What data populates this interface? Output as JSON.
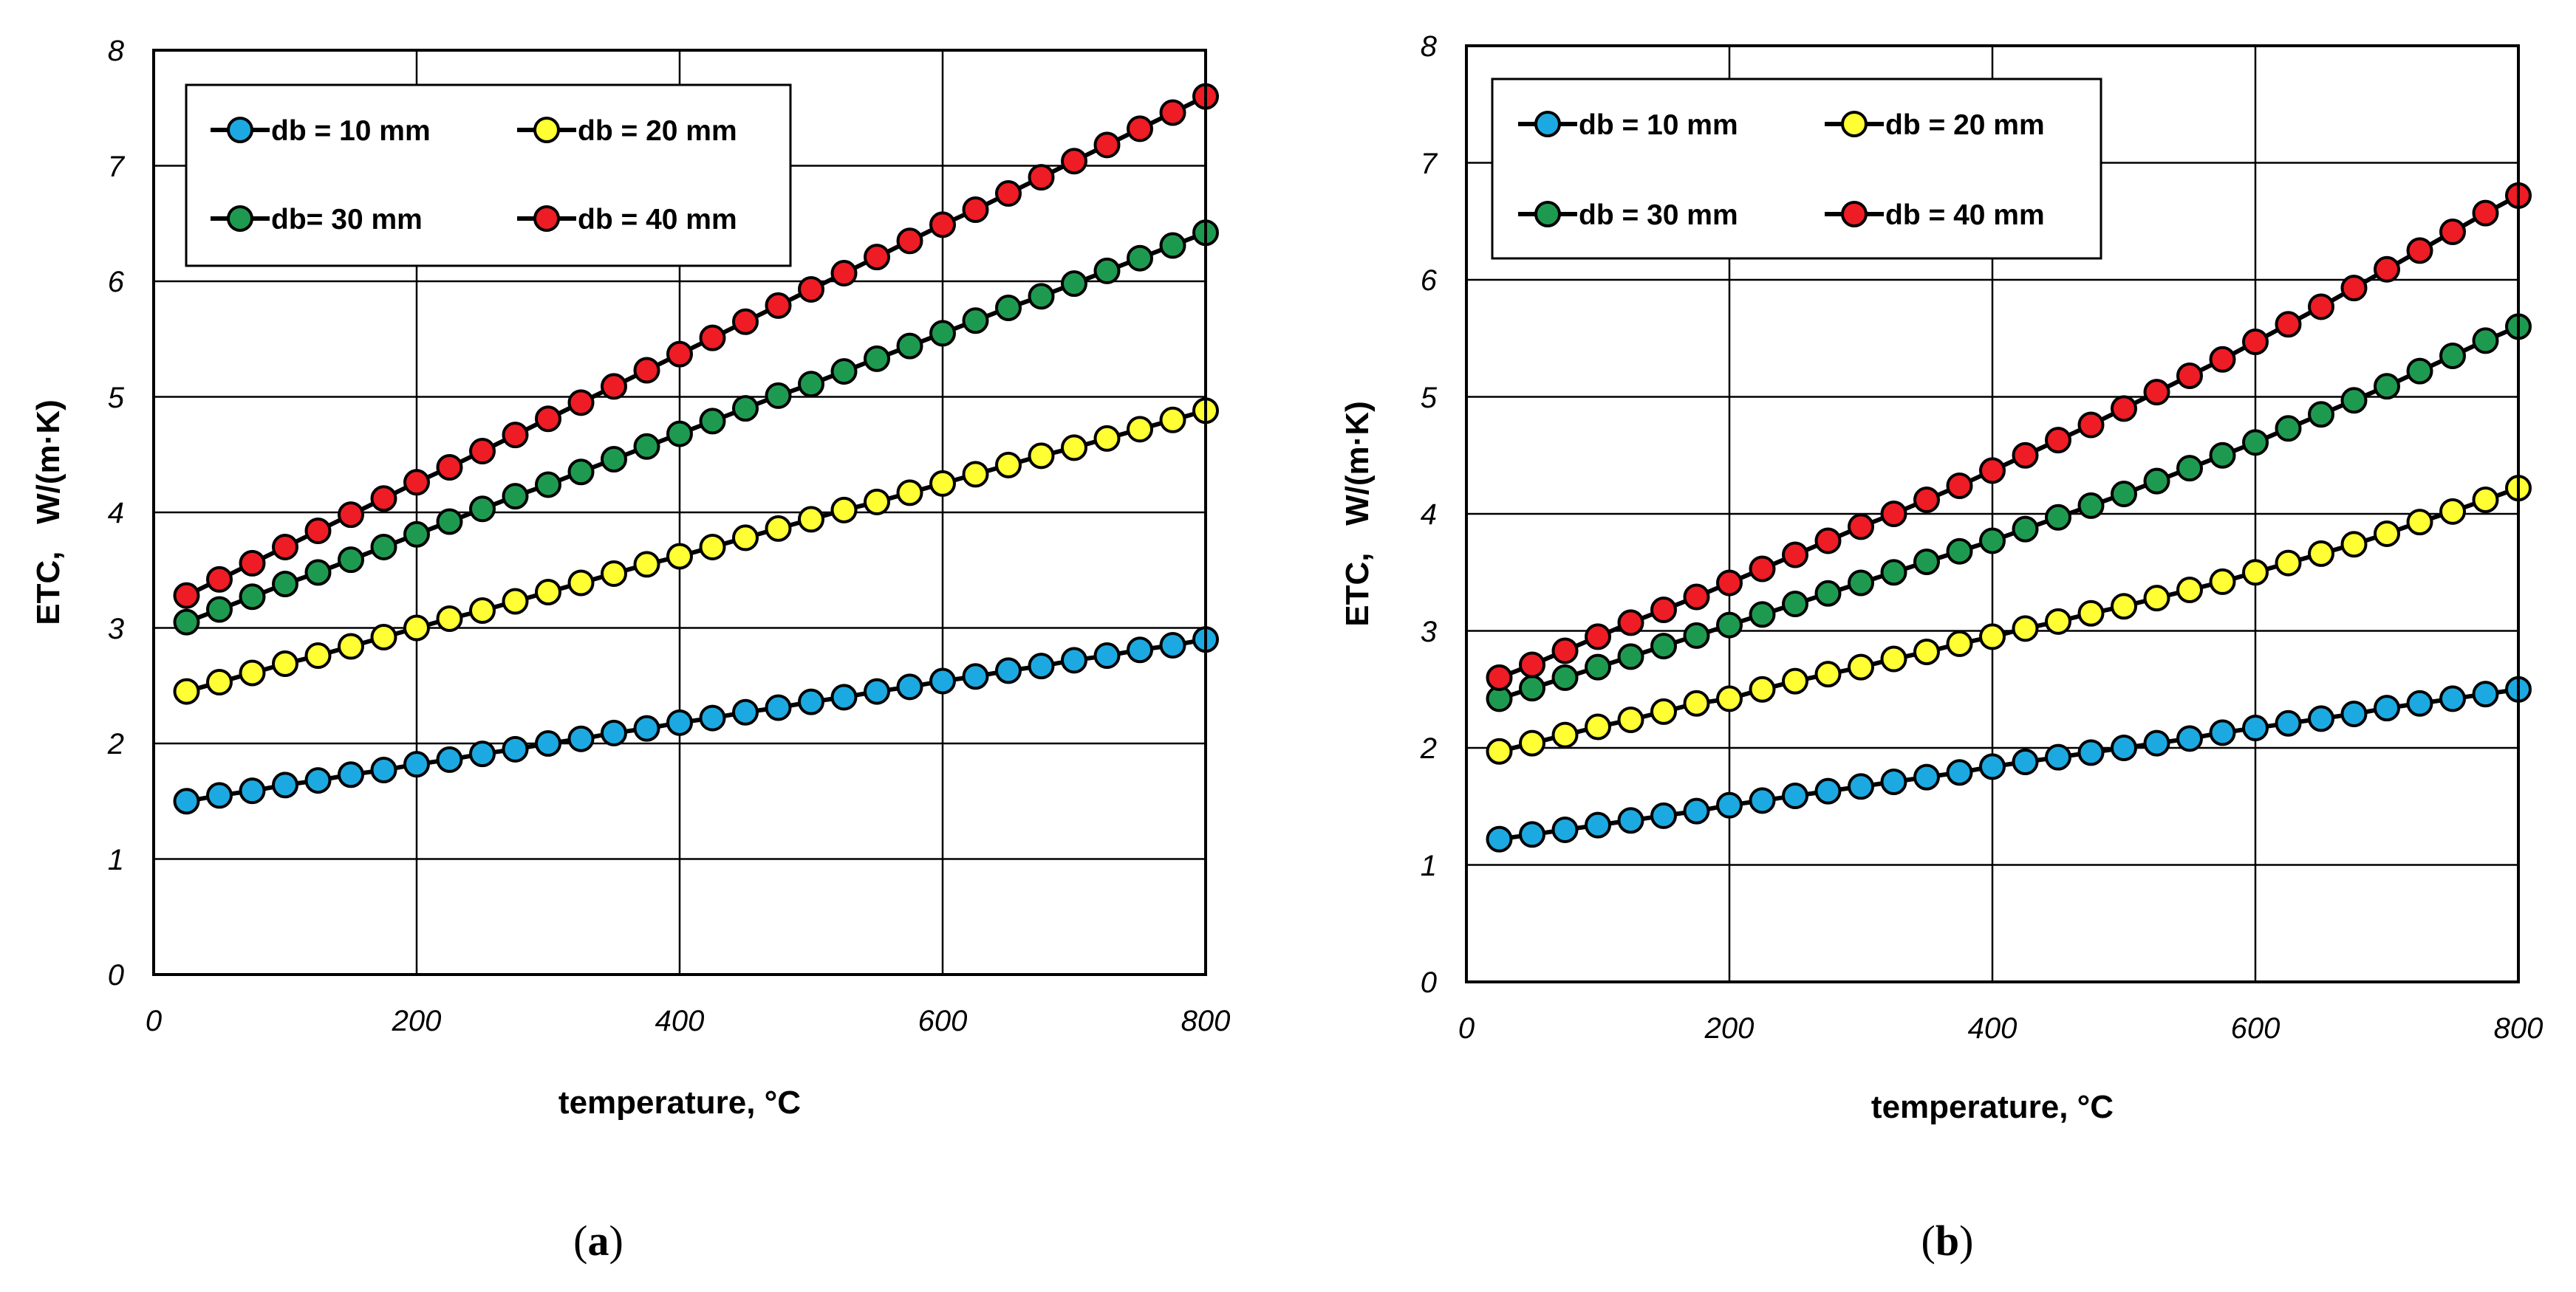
{
  "chart_data": [
    {
      "type": "line",
      "panel_label": "a",
      "xlabel": "temperature, °C",
      "ylabel": "ETC,   W/(m·K)",
      "xlim": [
        0,
        800
      ],
      "ylim": [
        0,
        8
      ],
      "x_ticks": [
        0,
        200,
        400,
        600,
        800
      ],
      "y_ticks": [
        0,
        1,
        2,
        3,
        4,
        5,
        6,
        7,
        8
      ],
      "grid": true,
      "legend_position": "top-left",
      "x": [
        25,
        50,
        75,
        100,
        125,
        150,
        175,
        200,
        225,
        250,
        275,
        300,
        325,
        350,
        375,
        400,
        425,
        450,
        475,
        500,
        525,
        550,
        575,
        600,
        625,
        650,
        675,
        700,
        725,
        750,
        775,
        800
      ],
      "series": [
        {
          "name": "db = 10 mm",
          "color": "#1ca9e1",
          "start": 1.5,
          "end": 2.9,
          "values": [
            1.5,
            1.55,
            1.59,
            1.64,
            1.68,
            1.73,
            1.77,
            1.82,
            1.86,
            1.91,
            1.95,
            2.0,
            2.04,
            2.09,
            2.13,
            2.18,
            2.22,
            2.27,
            2.31,
            2.36,
            2.4,
            2.45,
            2.49,
            2.54,
            2.58,
            2.63,
            2.67,
            2.72,
            2.76,
            2.81,
            2.85,
            2.9
          ]
        },
        {
          "name": "db = 20 mm",
          "color": "#ffff33",
          "start": 2.45,
          "end": 4.88,
          "values": [
            2.45,
            2.53,
            2.61,
            2.69,
            2.76,
            2.84,
            2.92,
            3.0,
            3.08,
            3.15,
            3.23,
            3.31,
            3.39,
            3.47,
            3.55,
            3.62,
            3.7,
            3.78,
            3.86,
            3.94,
            4.02,
            4.09,
            4.17,
            4.25,
            4.33,
            4.41,
            4.49,
            4.56,
            4.64,
            4.72,
            4.8,
            4.88
          ]
        },
        {
          "name": "db= 30 mm",
          "color": "#1e9a50",
          "start": 3.05,
          "end": 6.42,
          "values": [
            3.05,
            3.16,
            3.27,
            3.38,
            3.48,
            3.59,
            3.7,
            3.81,
            3.92,
            4.03,
            4.14,
            4.24,
            4.35,
            4.46,
            4.57,
            4.68,
            4.79,
            4.9,
            5.01,
            5.11,
            5.22,
            5.33,
            5.44,
            5.55,
            5.66,
            5.77,
            5.87,
            5.98,
            6.09,
            6.2,
            6.31,
            6.42
          ]
        },
        {
          "name": "db = 40 mm",
          "color": "#ee1c24",
          "start": 3.28,
          "end": 7.6,
          "values": [
            3.28,
            3.42,
            3.56,
            3.7,
            3.84,
            3.98,
            4.12,
            4.26,
            4.39,
            4.53,
            4.67,
            4.81,
            4.95,
            5.09,
            5.23,
            5.37,
            5.51,
            5.65,
            5.79,
            5.93,
            6.07,
            6.21,
            6.35,
            6.49,
            6.62,
            6.76,
            6.9,
            7.04,
            7.18,
            7.32,
            7.46,
            7.6
          ]
        }
      ]
    },
    {
      "type": "line",
      "panel_label": "b",
      "xlabel": "temperature, °C",
      "ylabel": "ETC,   W/(m·K)",
      "xlim": [
        0,
        800
      ],
      "ylim": [
        0,
        8
      ],
      "x_ticks": [
        0,
        200,
        400,
        600,
        800
      ],
      "y_ticks": [
        0,
        1,
        2,
        3,
        4,
        5,
        6,
        7,
        8
      ],
      "grid": true,
      "legend_position": "top-left",
      "x": [
        25,
        50,
        75,
        100,
        125,
        150,
        175,
        200,
        225,
        250,
        275,
        300,
        325,
        350,
        375,
        400,
        425,
        450,
        475,
        500,
        525,
        550,
        575,
        600,
        625,
        650,
        675,
        700,
        725,
        750,
        775,
        800
      ],
      "series": [
        {
          "name": "db = 10 mm",
          "color": "#1ca9e1",
          "start": 1.22,
          "end": 2.5,
          "values": [
            1.22,
            1.26,
            1.3,
            1.34,
            1.38,
            1.42,
            1.46,
            1.51,
            1.55,
            1.59,
            1.63,
            1.67,
            1.71,
            1.75,
            1.79,
            1.84,
            1.88,
            1.92,
            1.96,
            2.0,
            2.04,
            2.08,
            2.13,
            2.17,
            2.21,
            2.25,
            2.29,
            2.34,
            2.38,
            2.42,
            2.46,
            2.5
          ]
        },
        {
          "name": "db = 20 mm",
          "color": "#ffff33",
          "start": 1.97,
          "end": 4.22,
          "values": [
            1.97,
            2.04,
            2.11,
            2.18,
            2.24,
            2.31,
            2.38,
            2.42,
            2.5,
            2.57,
            2.63,
            2.69,
            2.76,
            2.82,
            2.89,
            2.95,
            3.02,
            3.08,
            3.15,
            3.21,
            3.28,
            3.35,
            3.42,
            3.5,
            3.58,
            3.66,
            3.74,
            3.83,
            3.93,
            4.02,
            4.12,
            4.22
          ]
        },
        {
          "name": "db = 30 mm",
          "color": "#1e9a50",
          "start": 2.42,
          "end": 5.6,
          "values": [
            2.42,
            2.51,
            2.6,
            2.69,
            2.78,
            2.87,
            2.96,
            3.05,
            3.14,
            3.23,
            3.32,
            3.41,
            3.5,
            3.59,
            3.68,
            3.77,
            3.87,
            3.97,
            4.07,
            4.17,
            4.28,
            4.39,
            4.5,
            4.61,
            4.73,
            4.85,
            4.97,
            5.09,
            5.22,
            5.35,
            5.48,
            5.6
          ]
        },
        {
          "name": "db = 40 mm",
          "color": "#ee1c24",
          "start": 2.6,
          "end": 6.72,
          "values": [
            2.6,
            2.71,
            2.83,
            2.95,
            3.07,
            3.18,
            3.29,
            3.41,
            3.53,
            3.65,
            3.77,
            3.89,
            4.0,
            4.12,
            4.24,
            4.37,
            4.5,
            4.63,
            4.76,
            4.9,
            5.04,
            5.18,
            5.32,
            5.47,
            5.62,
            5.77,
            5.93,
            6.09,
            6.25,
            6.41,
            6.57,
            6.72
          ]
        }
      ]
    }
  ]
}
